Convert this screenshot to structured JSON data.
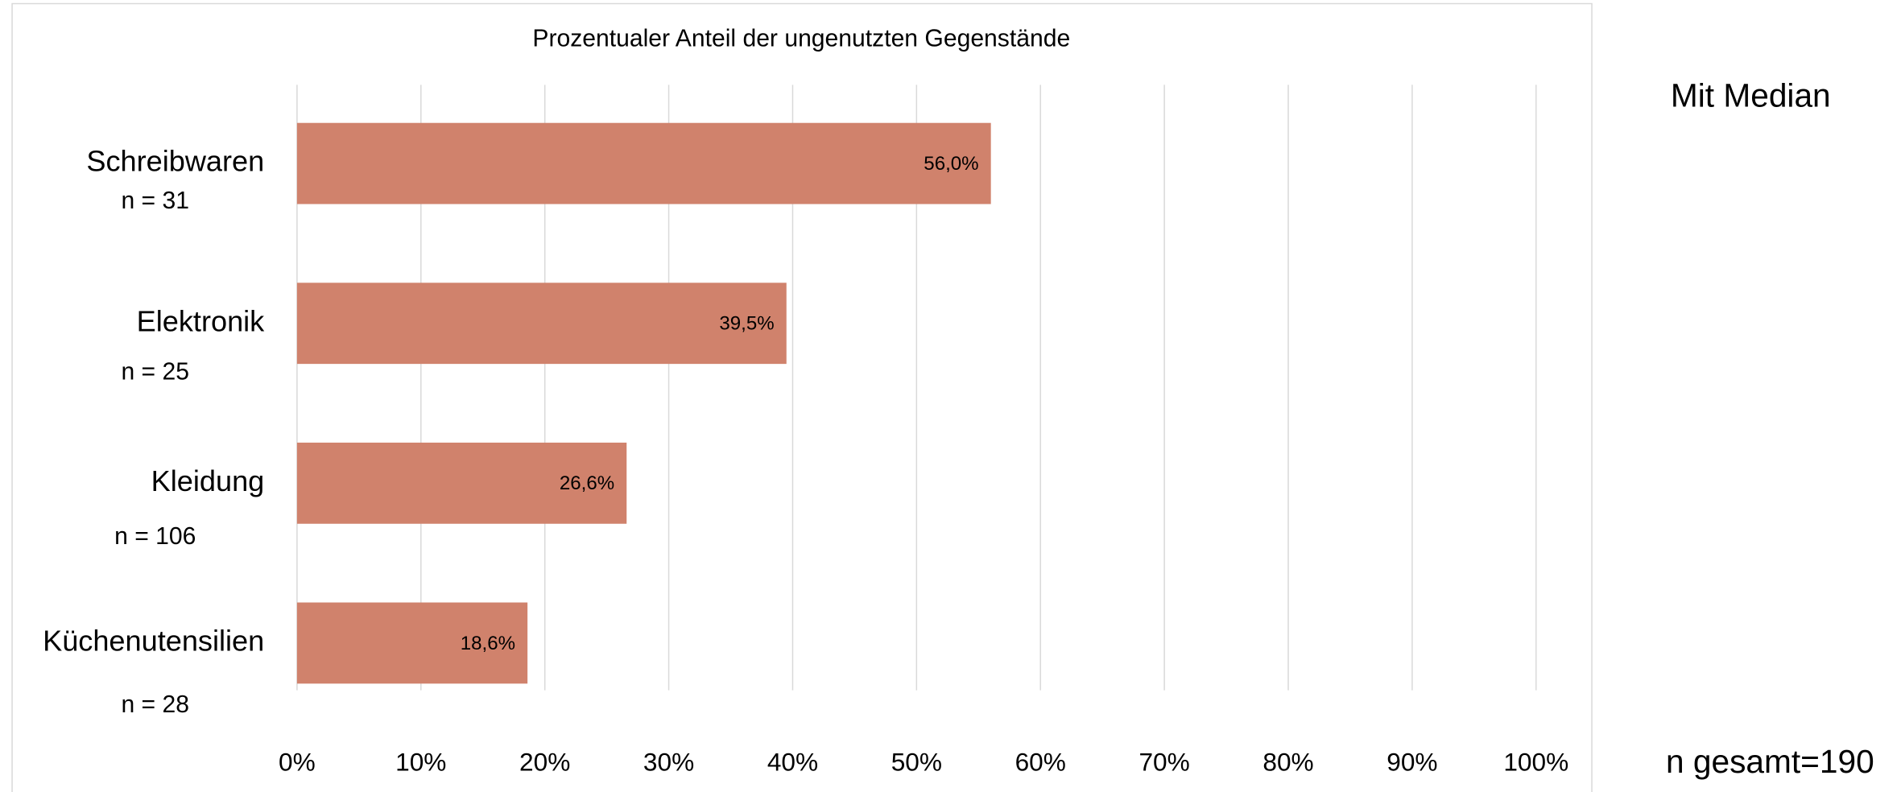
{
  "chart_data": {
    "type": "bar",
    "orientation": "horizontal",
    "title": "Prozentualer Anteil der ungenutzten Gegenstände",
    "categories": [
      "Schreibwaren",
      "Elektronik",
      "Kleidung",
      "Küchenutensilien"
    ],
    "category_notes": [
      "n = 31",
      "n = 25",
      "n = 106",
      "n = 28"
    ],
    "values": [
      56.0,
      39.5,
      26.6,
      18.6
    ],
    "value_labels": [
      "56,0%",
      "39,5%",
      "26,6%",
      "18,6%"
    ],
    "color": "#d0826c",
    "xlim": [
      0,
      100
    ],
    "xticks": [
      {
        "value": 0,
        "label": "0%"
      },
      {
        "value": 10,
        "label": "10%"
      },
      {
        "value": 20,
        "label": "20%"
      },
      {
        "value": 30,
        "label": "30%"
      },
      {
        "value": 40,
        "label": "40%"
      },
      {
        "value": 50,
        "label": "50%"
      },
      {
        "value": 60,
        "label": "60%"
      },
      {
        "value": 70,
        "label": "70%"
      },
      {
        "value": 80,
        "label": "80%"
      },
      {
        "value": 90,
        "label": "90%"
      },
      {
        "value": 100,
        "label": "100%"
      }
    ],
    "grid": true,
    "annotations": [
      "Mit Median",
      "n gesamt=190"
    ]
  }
}
